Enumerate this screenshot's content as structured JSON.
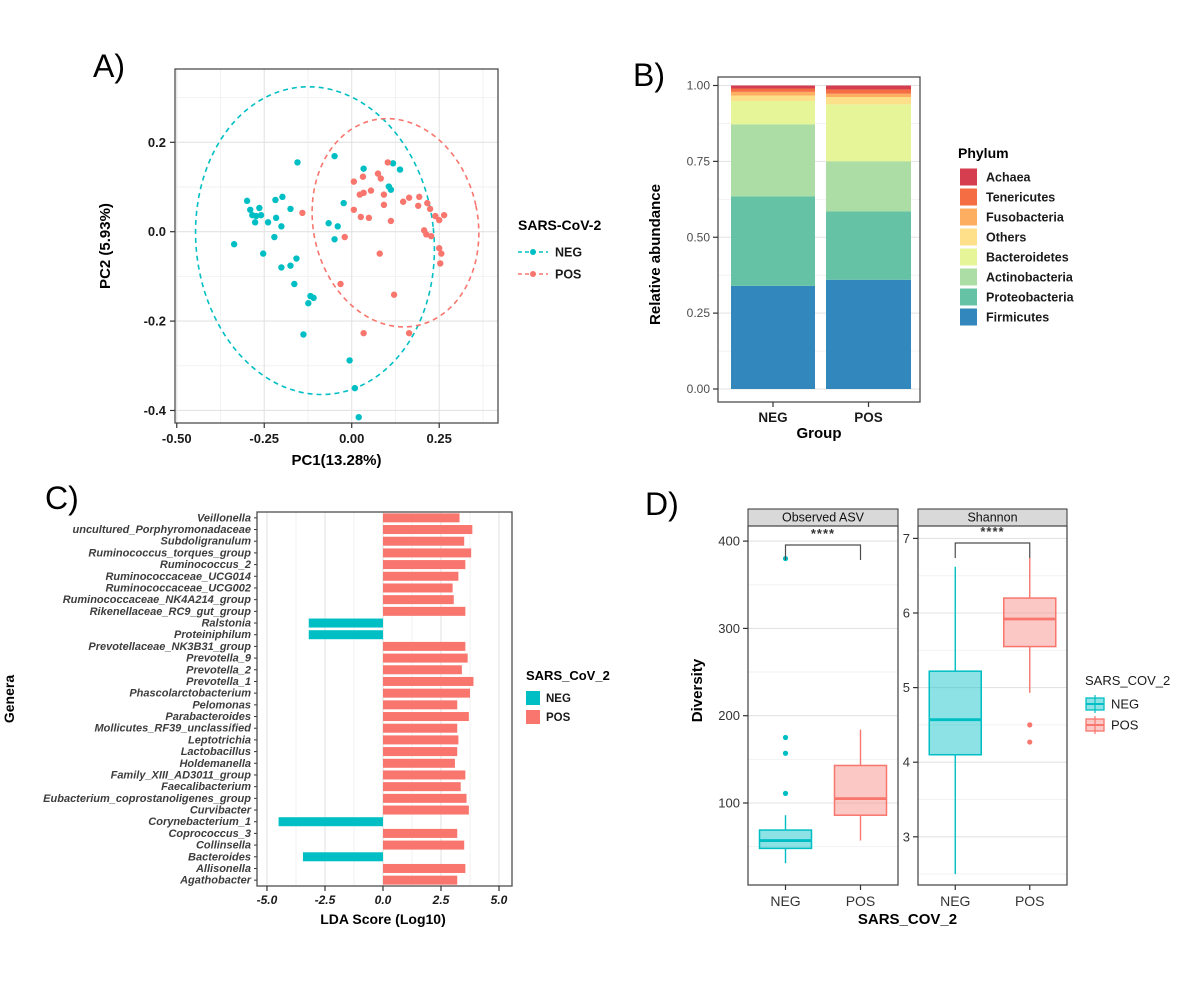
{
  "panels": {
    "a": "A)",
    "b": "B)",
    "c": "C)",
    "d": "D)"
  },
  "colors": {
    "neg": "#00BFC4",
    "pos": "#F8766D",
    "neg_fill": "rgba(0,191,196,0.45)",
    "pos_fill": "rgba(248,118,109,0.40)"
  },
  "chart_data": [
    {
      "id": "A",
      "type": "scatter",
      "xlabel": "PC1(13.28%)",
      "ylabel": "PC2 (5.93%)",
      "xlim": [
        -0.505,
        0.418
      ],
      "ylim": [
        -0.428,
        0.364
      ],
      "xticks": [
        -0.5,
        -0.25,
        0.0,
        0.25
      ],
      "xtick_labels": [
        "-0.50",
        "-0.25",
        "0.00",
        "0.25"
      ],
      "x_minor": [
        -0.375,
        -0.125,
        0.125,
        0.375
      ],
      "yticks": [
        0.2,
        0.0,
        -0.2,
        -0.4
      ],
      "ytick_labels": [
        "0.2",
        "0.0",
        "-0.2",
        "-0.4"
      ],
      "y_minor": [
        0.3,
        0.1,
        -0.1,
        -0.3
      ],
      "legend_title": "SARS-CoV-2",
      "series": [
        {
          "name": "NEG",
          "color": "#00BFC4",
          "points": [
            [
              -0.155,
              0.155
            ],
            [
              -0.049,
              0.169
            ],
            [
              0.034,
              0.141
            ],
            [
              0.118,
              0.153
            ],
            [
              0.138,
              0.139
            ],
            [
              0.112,
              0.094
            ],
            [
              -0.299,
              0.069
            ],
            [
              -0.218,
              0.071
            ],
            [
              -0.198,
              0.078
            ],
            [
              -0.29,
              0.049
            ],
            [
              -0.264,
              0.053
            ],
            [
              -0.284,
              0.037
            ],
            [
              -0.273,
              0.035
            ],
            [
              -0.259,
              0.037
            ],
            [
              -0.239,
              0.021
            ],
            [
              -0.216,
              0.031
            ],
            [
              -0.175,
              0.051
            ],
            [
              -0.201,
              0.012
            ],
            [
              -0.276,
              0.021
            ],
            [
              -0.023,
              0.064
            ],
            [
              -0.066,
              0.019
            ],
            [
              -0.04,
              0.012
            ],
            [
              -0.049,
              -0.017
            ],
            [
              -0.221,
              -0.012
            ],
            [
              -0.336,
              -0.028
            ],
            [
              -0.253,
              -0.049
            ],
            [
              -0.201,
              -0.08
            ],
            [
              -0.175,
              -0.076
            ],
            [
              -0.158,
              -0.06
            ],
            [
              -0.164,
              -0.117
            ],
            [
              -0.118,
              -0.144
            ],
            [
              -0.109,
              -0.148
            ],
            [
              -0.124,
              -0.16
            ],
            [
              -0.138,
              -0.23
            ],
            [
              -0.006,
              -0.288
            ],
            [
              0.009,
              -0.35
            ],
            [
              0.02,
              -0.415
            ],
            [
              0.106,
              0.101
            ]
          ]
        },
        {
          "name": "POS",
          "color": "#F8766D",
          "points": [
            [
              0.006,
              0.112
            ],
            [
              0.032,
              0.123
            ],
            [
              0.075,
              0.13
            ],
            [
              0.083,
              0.119
            ],
            [
              0.103,
              0.155
            ],
            [
              0.164,
              0.076
            ],
            [
              0.193,
              0.078
            ],
            [
              0.023,
              0.083
            ],
            [
              0.034,
              0.087
            ],
            [
              0.055,
              0.092
            ],
            [
              0.092,
              0.083
            ],
            [
              0.006,
              0.049
            ],
            [
              0.026,
              0.033
            ],
            [
              0.049,
              0.031
            ],
            [
              0.092,
              0.06
            ],
            [
              0.112,
              0.024
            ],
            [
              0.147,
              0.067
            ],
            [
              0.19,
              0.058
            ],
            [
              0.216,
              0.064
            ],
            [
              0.224,
              0.051
            ],
            [
              0.239,
              0.035
            ],
            [
              0.25,
              0.026
            ],
            [
              0.264,
              0.037
            ],
            [
              0.207,
              0.003
            ],
            [
              0.213,
              -0.006
            ],
            [
              0.227,
              -0.01
            ],
            [
              0.08,
              -0.049
            ],
            [
              0.25,
              -0.037
            ],
            [
              0.256,
              -0.049
            ],
            [
              0.253,
              -0.071
            ],
            [
              -0.02,
              -0.012
            ],
            [
              -0.141,
              0.042
            ],
            [
              -0.032,
              -0.117
            ],
            [
              0.034,
              -0.227
            ],
            [
              0.121,
              -0.141
            ],
            [
              0.164,
              -0.227
            ]
          ]
        }
      ],
      "ellipses": [
        {
          "group": "NEG",
          "color": "#00BFC4",
          "cx": -0.105,
          "cy": -0.02,
          "rx": 0.34,
          "ry": 0.345,
          "rot": -6
        },
        {
          "group": "POS",
          "color": "#F8766D",
          "cx": 0.125,
          "cy": 0.02,
          "rx": 0.235,
          "ry": 0.235,
          "rot": -12
        }
      ]
    },
    {
      "id": "B",
      "type": "bar-stacked",
      "xlabel": "Group",
      "ylabel": "Relative abundance",
      "categories": [
        "NEG",
        "POS"
      ],
      "yticks": [
        0.0,
        0.25,
        0.5,
        0.75,
        1.0
      ],
      "ytick_labels": [
        "0.00",
        "0.25",
        "0.50",
        "0.75",
        "1.00"
      ],
      "y_minor": [
        0.125,
        0.375,
        0.625,
        0.875
      ],
      "ylim": [
        -0.043,
        1.026
      ],
      "legend_title": "Phylum",
      "series": [
        {
          "name": "Achaea",
          "color": "#D53E4F",
          "values": [
            0.01,
            0.013
          ]
        },
        {
          "name": "Tenericutes",
          "color": "#F46D43",
          "values": [
            0.011,
            0.014
          ]
        },
        {
          "name": "Fusobacteria",
          "color": "#FDAE61",
          "values": [
            0.012,
            0.011
          ]
        },
        {
          "name": "Others",
          "color": "#FEE08B",
          "values": [
            0.018,
            0.024
          ]
        },
        {
          "name": "Bacteroidetes",
          "color": "#E6F598",
          "values": [
            0.077,
            0.188
          ]
        },
        {
          "name": "Actinobacteria",
          "color": "#ABDDA4",
          "values": [
            0.237,
            0.165
          ]
        },
        {
          "name": "Proteobacteria",
          "color": "#66C2A5",
          "values": [
            0.295,
            0.225
          ]
        },
        {
          "name": "Firmicutes",
          "color": "#3288BD",
          "values": [
            0.34,
            0.36
          ]
        }
      ]
    },
    {
      "id": "C",
      "type": "bar-horizontal",
      "xlabel": "LDA Score (Log10)",
      "ylabel": "Genera",
      "xlim": [
        -5.43,
        5.56
      ],
      "xticks": [
        -5.0,
        -2.5,
        0.0,
        2.5,
        5.0
      ],
      "xtick_labels": [
        "-5.0",
        "-2.5",
        "0.0",
        "2.5",
        "5.0"
      ],
      "x_minor": [
        -3.75,
        -1.25,
        1.25,
        3.75
      ],
      "legend_title": "SARS_CoV_2",
      "groups": [
        {
          "name": "NEG",
          "color": "#00BFC4"
        },
        {
          "name": "POS",
          "color": "#F8766D"
        }
      ],
      "bars": [
        {
          "genus": "Veillonella",
          "value": 3.3,
          "group": "POS"
        },
        {
          "genus": "uncultured_Porphyromonadaceae",
          "value": 3.85,
          "group": "POS"
        },
        {
          "genus": "Subdoligranulum",
          "value": 3.5,
          "group": "POS"
        },
        {
          "genus": "Ruminococcus_torques_group",
          "value": 3.8,
          "group": "POS"
        },
        {
          "genus": "Ruminococcus_2",
          "value": 3.55,
          "group": "POS"
        },
        {
          "genus": "Ruminococcaceae_UCG014",
          "value": 3.25,
          "group": "POS"
        },
        {
          "genus": "Ruminococcaceae_UCG002",
          "value": 3.0,
          "group": "POS"
        },
        {
          "genus": "Ruminococcaceae_NK4A214_group",
          "value": 3.05,
          "group": "POS"
        },
        {
          "genus": "Rikenellaceae_RC9_gut_group",
          "value": 3.55,
          "group": "POS"
        },
        {
          "genus": "Ralstonia",
          "value": -3.2,
          "group": "NEG"
        },
        {
          "genus": "Proteiniphilum",
          "value": -3.2,
          "group": "NEG"
        },
        {
          "genus": "Prevotellaceae_NK3B31_group",
          "value": 3.55,
          "group": "POS"
        },
        {
          "genus": "Prevotella_9",
          "value": 3.65,
          "group": "POS"
        },
        {
          "genus": "Prevotella_2",
          "value": 3.4,
          "group": "POS"
        },
        {
          "genus": "Prevotella_1",
          "value": 3.9,
          "group": "POS"
        },
        {
          "genus": "Phascolarctobacterium",
          "value": 3.75,
          "group": "POS"
        },
        {
          "genus": "Pelomonas",
          "value": 3.2,
          "group": "POS"
        },
        {
          "genus": "Parabacteroides",
          "value": 3.7,
          "group": "POS"
        },
        {
          "genus": "Mollicutes_RF39_unclassified",
          "value": 3.2,
          "group": "POS"
        },
        {
          "genus": "Leptotrichia",
          "value": 3.25,
          "group": "POS"
        },
        {
          "genus": "Lactobacillus",
          "value": 3.2,
          "group": "POS"
        },
        {
          "genus": "Holdemanella",
          "value": 3.1,
          "group": "POS"
        },
        {
          "genus": "Family_XIII_AD3011_group",
          "value": 3.55,
          "group": "POS"
        },
        {
          "genus": "Faecalibacterium",
          "value": 3.35,
          "group": "POS"
        },
        {
          "genus": "Eubacterium_coprostanoligenes_group",
          "value": 3.6,
          "group": "POS"
        },
        {
          "genus": "Curvibacter",
          "value": 3.7,
          "group": "POS"
        },
        {
          "genus": "Corynebacterium_1",
          "value": -4.5,
          "group": "NEG"
        },
        {
          "genus": "Coprococcus_3",
          "value": 3.2,
          "group": "POS"
        },
        {
          "genus": "Collinsella",
          "value": 3.5,
          "group": "POS"
        },
        {
          "genus": "Bacteroides",
          "value": -3.45,
          "group": "NEG"
        },
        {
          "genus": "Allisonella",
          "value": 3.55,
          "group": "POS"
        },
        {
          "genus": "Agathobacter",
          "value": 3.2,
          "group": "POS"
        }
      ]
    },
    {
      "id": "D",
      "type": "boxplot",
      "xlabel": "SARS_COV_2",
      "ylabel": "Diversity",
      "legend_title": "SARS_COV_2",
      "groups": [
        {
          "name": "NEG",
          "color": "#00BFC4"
        },
        {
          "name": "POS",
          "color": "#F8766D"
        }
      ],
      "facets": [
        {
          "title": "Observed ASV",
          "sig": "****",
          "yticks": [
            100,
            200,
            300,
            400
          ],
          "ytick_labels": [
            "100",
            "200",
            "300",
            "400"
          ],
          "y_minor": [
            50,
            150,
            250,
            350
          ],
          "ylim": [
            6,
            417
          ],
          "boxes": [
            {
              "group": "NEG",
              "whislo": 31,
              "q1": 48,
              "med": 57,
              "q3": 69,
              "whishi": 86,
              "outliers": [
                111,
                157,
                175,
                380
              ]
            },
            {
              "group": "POS",
              "whislo": 57,
              "q1": 86,
              "med": 105,
              "q3": 143,
              "whishi": 184,
              "outliers": []
            }
          ]
        },
        {
          "title": "Shannon",
          "sig": "****",
          "yticks": [
            3,
            4,
            5,
            6,
            7
          ],
          "ytick_labels": [
            "3",
            "4",
            "5",
            "6",
            "7"
          ],
          "y_minor": [
            2.5,
            3.5,
            4.5,
            5.5,
            6.5
          ],
          "ylim": [
            2.35,
            7.17
          ],
          "boxes": [
            {
              "group": "NEG",
              "whislo": 2.5,
              "q1": 4.1,
              "med": 4.57,
              "q3": 5.22,
              "whishi": 6.62,
              "outliers": []
            },
            {
              "group": "POS",
              "whislo": 4.93,
              "q1": 5.55,
              "med": 5.92,
              "q3": 6.2,
              "whishi": 6.74,
              "outliers": [
                4.5,
                4.27
              ]
            }
          ]
        }
      ]
    }
  ]
}
